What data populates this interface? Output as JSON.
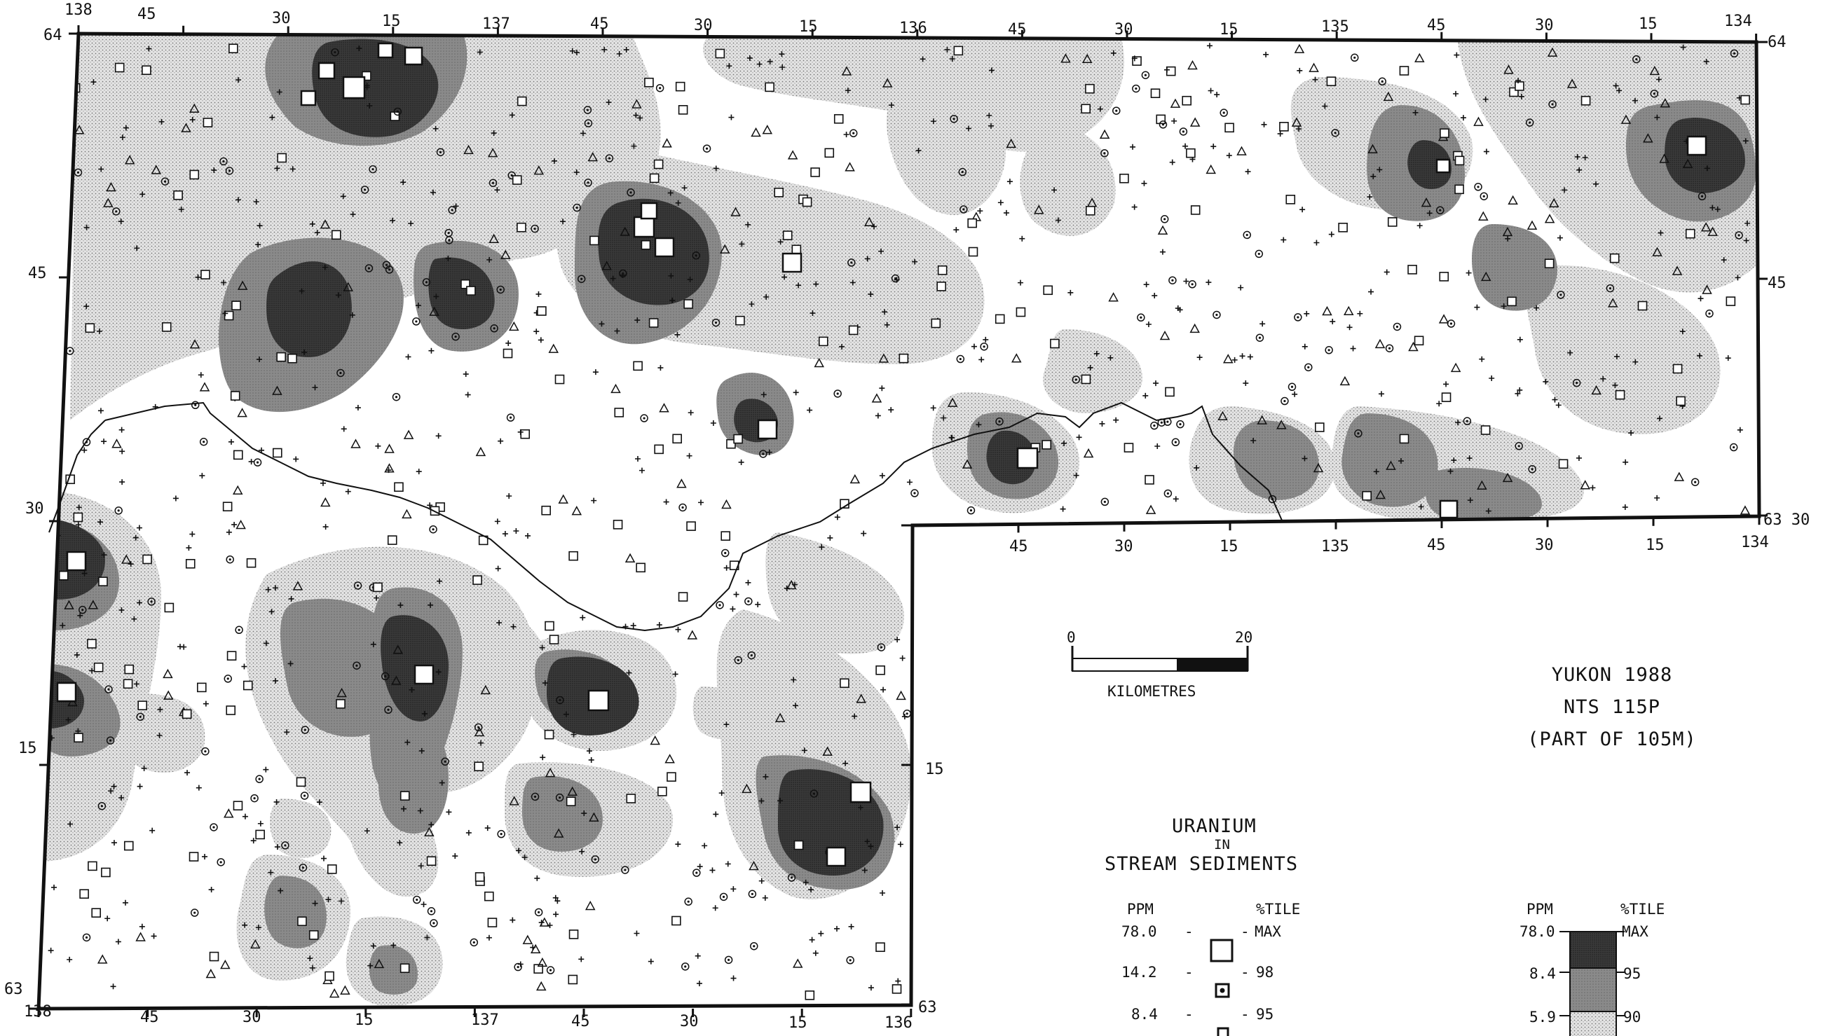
{
  "title_block": {
    "line1": "YUKON 1988",
    "line2": "NTS 115P",
    "line3": "(PART OF 105M)"
  },
  "scale_bar": {
    "start_label": "0",
    "end_label": "20",
    "units": "KILOMETRES"
  },
  "legend": {
    "title1": "URANIUM",
    "title2": "IN",
    "title3": "STREAM SEDIMENTS",
    "symbols": {
      "col_ppm": "PPM",
      "col_pct": "%TILE",
      "rows": [
        {
          "ppm": "78.0",
          "pct": "MAX"
        },
        {
          "ppm": "14.2",
          "pct": "98"
        },
        {
          "ppm": "8.4",
          "pct": "95"
        }
      ]
    },
    "contours": {
      "col_ppm": "PPM",
      "col_pct": "%TILE",
      "rows": [
        {
          "ppm": "78.0",
          "pct": "MAX"
        },
        {
          "ppm": "8.4",
          "pct": "95"
        },
        {
          "ppm": "5.9",
          "pct": "90"
        }
      ]
    }
  },
  "grid_labels": {
    "top": [
      "138",
      "45",
      "30",
      "15",
      "137",
      "45",
      "30",
      "15",
      "136",
      "45",
      "30",
      "15",
      "135",
      "45",
      "30",
      "15",
      "134"
    ],
    "bottom_left": [
      "138",
      "45",
      "30",
      "15",
      "137",
      "45",
      "30",
      "15",
      "136"
    ],
    "bottom_right": [
      "45",
      "30",
      "15",
      "135",
      "45",
      "30",
      "15",
      "134"
    ],
    "left": [
      "64",
      "45",
      "30",
      "15",
      "63"
    ],
    "right": [
      "64",
      "45",
      "63 30"
    ],
    "inner": [
      "15",
      "63"
    ]
  },
  "colors": {
    "zone_max": "#3a3a3a",
    "zone_95": "#8a8a8a",
    "zone_90": "#d2d2d2",
    "background": "#ffffff",
    "ink": "#111111"
  },
  "symbol_icons": [
    "cross-icon",
    "triangle-icon",
    "circle-dot-icon",
    "square-icon",
    "square-dot-icon"
  ]
}
